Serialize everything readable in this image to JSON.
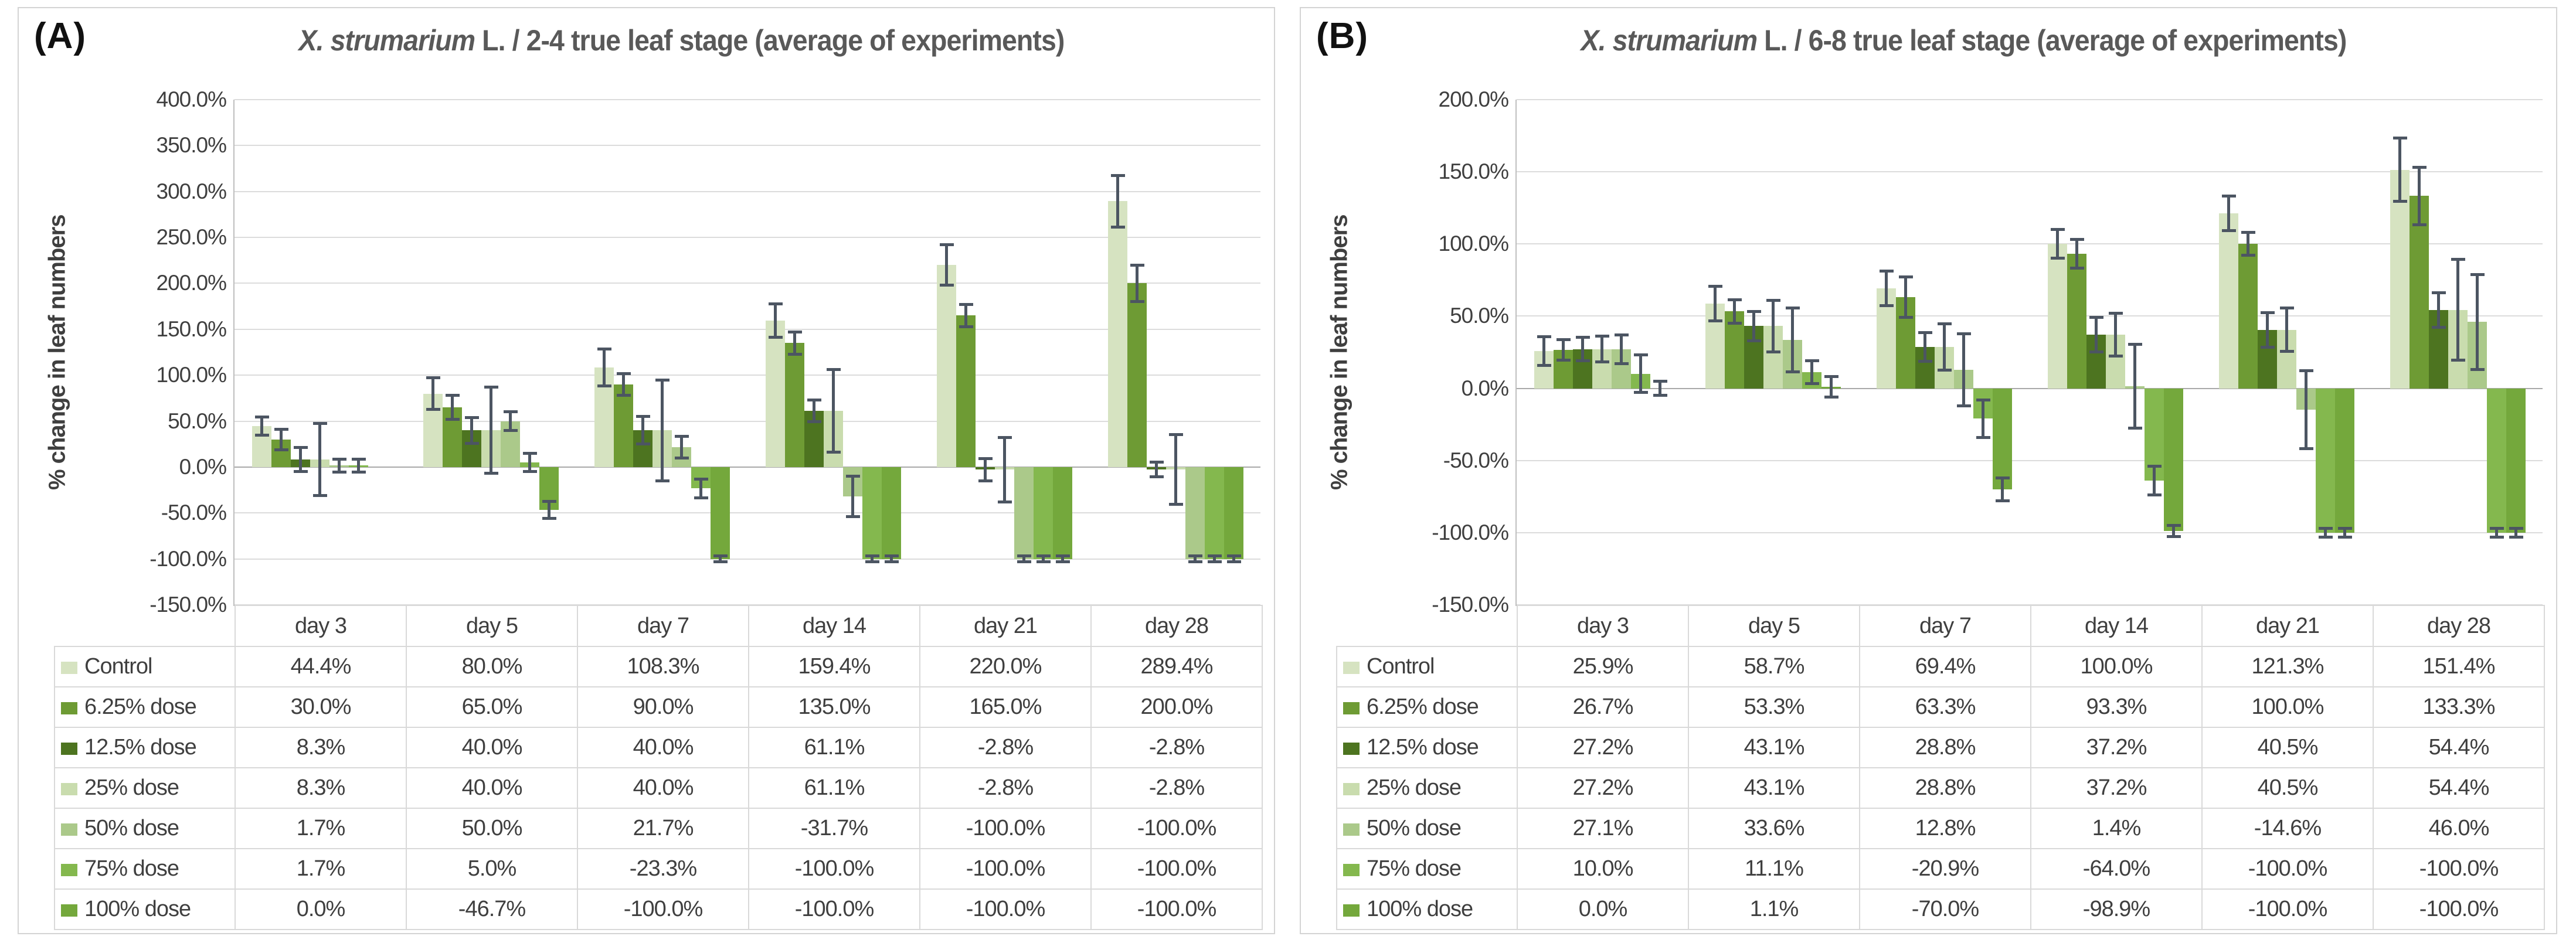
{
  "colors": {
    "error_bar": "#4c5562",
    "gridline": "#dcdcdc",
    "zero_line": "#a9a9a9",
    "axis_line": "#bfbfbf",
    "text": "#3f3f3f",
    "title": "#595959",
    "table_border": "#d9d9d9",
    "panel_border": "#d4d4d4",
    "background": "#ffffff"
  },
  "panels": [
    {
      "label": "(A)",
      "title": {
        "italic": "X. strumarium",
        "rest": " L. / 2-4 true leaf stage (average of experiments)"
      },
      "y_axis_label": "% change in leaf numbers",
      "chart_data": {
        "type": "bar",
        "categories": [
          "day 3",
          "day 5",
          "day 7",
          "day 14",
          "day 21",
          "day 28"
        ],
        "ylim": [
          -150,
          400
        ],
        "tick_step": 50,
        "tick_format": "percent_one_decimal",
        "grid": true,
        "legend_position": "table-left",
        "error_bars": true,
        "series": [
          {
            "name": "Control",
            "color": "#d6e3c1",
            "values": [
              44.4,
              80.0,
              108.3,
              159.4,
              220.0,
              289.4
            ],
            "errors": [
              10,
              17,
              20,
              18,
              22,
              28
            ]
          },
          {
            "name": "6.25% dose",
            "color": "#6e9b34",
            "values": [
              30.0,
              65.0,
              90.0,
              135.0,
              165.0,
              200.0
            ],
            "errors": [
              11,
              13,
              12,
              12,
              12,
              20
            ]
          },
          {
            "name": "12.5% dose",
            "color": "#4d7420",
            "values": [
              8.3,
              40.0,
              40.0,
              61.1,
              -2.8,
              -2.8
            ],
            "errors": [
              13,
              14,
              15,
              12,
              12,
              8
            ]
          },
          {
            "name": "25% dose",
            "color": "#c9dcae",
            "values": [
              8.3,
              40.0,
              40.0,
              61.1,
              -2.8,
              -2.8
            ],
            "errors": [
              39,
              47,
              55,
              45,
              35,
              38
            ]
          },
          {
            "name": "50% dose",
            "color": "#abc98a",
            "values": [
              1.7,
              50.0,
              21.7,
              -31.7,
              -100.0,
              -100.0
            ],
            "errors": [
              7,
              10,
              12,
              22,
              3,
              3
            ]
          },
          {
            "name": "75% dose",
            "color": "#84b84e",
            "values": [
              1.7,
              5.0,
              -23.3,
              -100.0,
              -100.0,
              -100.0
            ],
            "errors": [
              7,
              10,
              10,
              3,
              3,
              3
            ]
          },
          {
            "name": "100% dose",
            "color": "#74a83c",
            "values": [
              0.0,
              -46.7,
              -100.0,
              -100.0,
              -100.0,
              -100.0
            ],
            "errors": [
              0,
              9,
              3,
              3,
              3,
              3
            ]
          }
        ]
      }
    },
    {
      "label": "(B)",
      "title": {
        "italic": "X. strumarium",
        "rest": " L. / 6-8 true leaf stage (average of experiments)"
      },
      "y_axis_label": "% change in leaf numbers",
      "chart_data": {
        "type": "bar",
        "categories": [
          "day 3",
          "day 5",
          "day 7",
          "day 14",
          "day 21",
          "day 28"
        ],
        "ylim": [
          -150,
          200
        ],
        "tick_step": 50,
        "tick_format": "percent_one_decimal",
        "grid": true,
        "legend_position": "table-left",
        "error_bars": true,
        "series": [
          {
            "name": "Control",
            "color": "#d6e3c1",
            "values": [
              25.9,
              58.7,
              69.4,
              100.0,
              121.3,
              151.4
            ],
            "errors": [
              10,
              12,
              12,
              10,
              12,
              22
            ]
          },
          {
            "name": "6.25% dose",
            "color": "#6e9b34",
            "values": [
              26.7,
              53.3,
              63.3,
              93.3,
              100.0,
              133.3
            ],
            "errors": [
              7,
              8,
              14,
              10,
              8,
              20
            ]
          },
          {
            "name": "12.5% dose",
            "color": "#4d7420",
            "values": [
              27.2,
              43.1,
              28.8,
              37.2,
              40.5,
              54.4
            ],
            "errors": [
              8,
              10,
              10,
              12,
              12,
              12
            ]
          },
          {
            "name": "25% dose",
            "color": "#c9dcae",
            "values": [
              27.2,
              43.1,
              28.8,
              37.2,
              40.5,
              54.4
            ],
            "errors": [
              9,
              18,
              16,
              15,
              15,
              35
            ]
          },
          {
            "name": "50% dose",
            "color": "#abc98a",
            "values": [
              27.1,
              33.6,
              12.8,
              1.4,
              -14.6,
              46.0
            ],
            "errors": [
              10,
              22,
              25,
              29,
              27,
              33
            ]
          },
          {
            "name": "75% dose",
            "color": "#84b84e",
            "values": [
              10.0,
              11.1,
              -20.9,
              -64.0,
              -100.0,
              -100.0
            ],
            "errors": [
              13,
              8,
              13,
              10,
              3,
              3
            ]
          },
          {
            "name": "100% dose",
            "color": "#74a83c",
            "values": [
              0.0,
              1.1,
              -70.0,
              -98.9,
              -100.0,
              -100.0
            ],
            "errors": [
              5,
              7,
              8,
              4,
              3,
              3
            ]
          }
        ]
      }
    }
  ]
}
